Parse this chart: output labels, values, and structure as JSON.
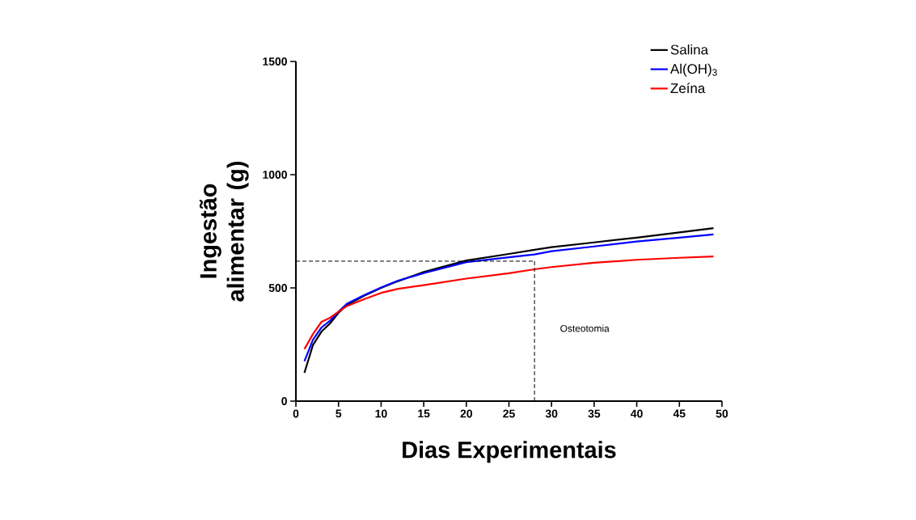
{
  "chart_data": {
    "type": "line",
    "xlabel": "Dias Experimentais",
    "ylabel": "Ingestão alimentar (g)",
    "x": [
      1,
      2,
      3,
      4,
      5,
      6,
      8,
      10,
      12,
      15,
      20,
      25,
      28,
      30,
      35,
      40,
      45,
      49
    ],
    "series": [
      {
        "name": "Salina",
        "color": "#000000",
        "values": [
          125,
          248,
          307,
          343,
          390,
          424,
          465,
          500,
          530,
          570,
          621,
          650,
          668,
          680,
          701,
          722,
          745,
          764
        ]
      },
      {
        "name": "Al(OH)$_{3}$",
        "color": "#0000ff",
        "values": [
          176,
          271,
          325,
          355,
          395,
          430,
          468,
          502,
          532,
          565,
          614,
          635,
          648,
          662,
          683,
          705,
          722,
          736
        ]
      },
      {
        "name": "Zeína",
        "color": "#ff0000",
        "values": [
          230,
          296,
          350,
          368,
          395,
          420,
          450,
          478,
          496,
          512,
          541,
          565,
          582,
          592,
          611,
          624,
          633,
          639
        ]
      }
    ],
    "xlim": [
      0,
      50
    ],
    "xticks": [
      0,
      5,
      10,
      15,
      20,
      25,
      30,
      35,
      40,
      45,
      50
    ],
    "ylim": [
      0,
      1500
    ],
    "yticks": [
      0,
      500,
      1000,
      1500
    ],
    "ref_lines": [
      {
        "axis": "y",
        "value": 618,
        "line_style": "dashed",
        "color": "#000000"
      },
      {
        "axis": "x",
        "value": 28,
        "line_style": "dashed",
        "color": "#000000",
        "label": "Osteotomia"
      }
    ],
    "legend": "top right",
    "grid": false,
    "line_style": "solid",
    "marker": "none"
  }
}
